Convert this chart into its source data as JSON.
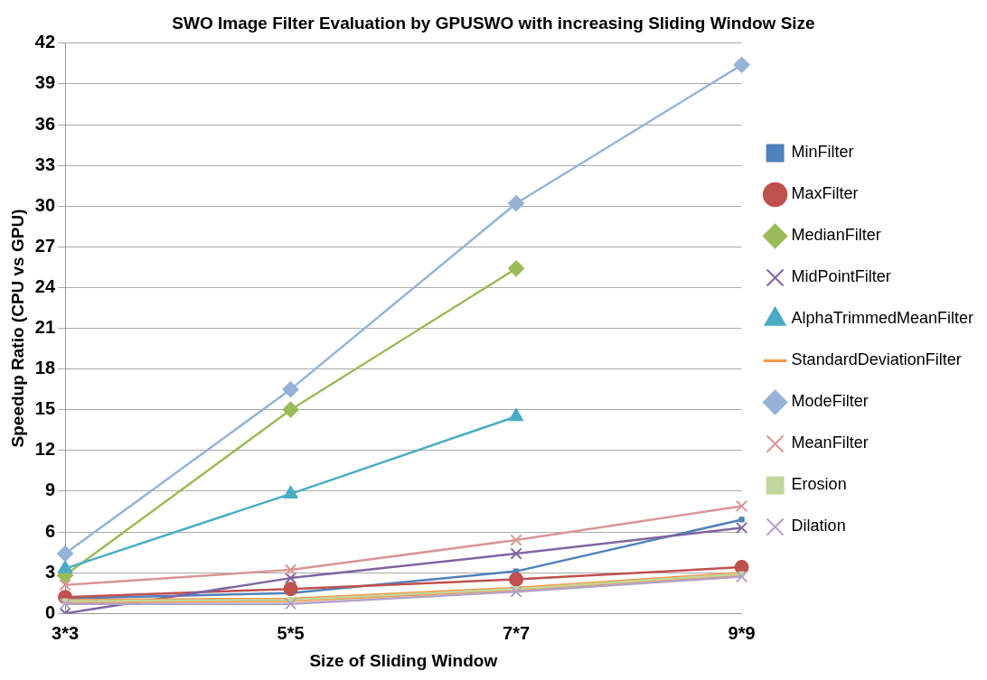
{
  "chart_data": {
    "type": "line",
    "title": "SWO Image Filter Evaluation by GPUSWO with increasing Sliding Window Size",
    "xlabel": "Size of Sliding Window",
    "ylabel": "Speedup Ratio (CPU vs GPU)",
    "categories": [
      "3*3",
      "5*5",
      "7*7",
      "9*9"
    ],
    "series": [
      {
        "name": "MinFilter",
        "color": "#4f81bd",
        "marker": "square",
        "values": [
          1.1,
          1.5,
          3.1,
          6.9
        ]
      },
      {
        "name": "MaxFilter",
        "color": "#c0504d",
        "marker": "circle",
        "values": [
          1.2,
          1.8,
          2.5,
          3.4
        ]
      },
      {
        "name": "MedianFilter",
        "color": "#9bbb59",
        "marker": "diamond",
        "values": [
          2.8,
          15,
          25.4,
          null
        ]
      },
      {
        "name": "MidPointFilter",
        "color": "#8064a2",
        "marker": "cross",
        "values": [
          0,
          2.6,
          4.4,
          6.3
        ]
      },
      {
        "name": "AlphaTrimmedMeanFilter",
        "color": "#4bacc6",
        "marker": "triangle",
        "values": [
          3.3,
          8.8,
          14.5,
          null
        ]
      },
      {
        "name": "StandardDeviationFilter",
        "color": "#f79646",
        "marker": "none",
        "values": [
          0.9,
          1.0,
          1.8,
          2.9
        ]
      },
      {
        "name": "ModeFilter",
        "color": "#95b3d7",
        "marker": "diamond",
        "values": [
          4.4,
          16.5,
          30.2,
          40.4
        ]
      },
      {
        "name": "MeanFilter",
        "color": "#d99694",
        "marker": "cross",
        "values": [
          2.1,
          3.2,
          5.4,
          7.9
        ]
      },
      {
        "name": "Erosion",
        "color": "#c3d69b",
        "marker": "square",
        "values": [
          0.9,
          1.0,
          1.8,
          2.9
        ]
      },
      {
        "name": "Dilation",
        "color": "#b3a2c7",
        "marker": "cross",
        "values": [
          0.7,
          0.7,
          1.6,
          2.7
        ]
      }
    ],
    "ylim": [
      0,
      42
    ],
    "yticks": [
      0,
      3,
      6,
      9,
      12,
      15,
      18,
      21,
      24,
      27,
      30,
      33,
      36,
      39,
      42
    ],
    "grid": "y",
    "legend": "right"
  }
}
